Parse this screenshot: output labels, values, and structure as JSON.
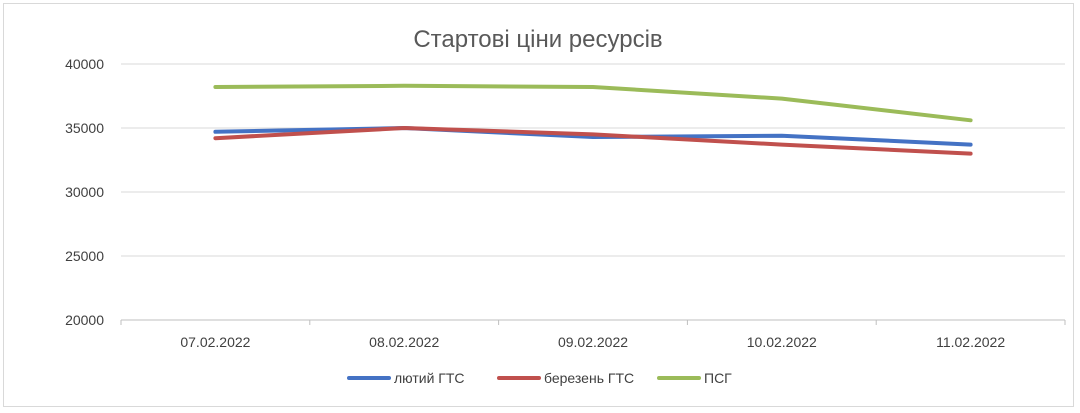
{
  "chart_data": {
    "type": "line",
    "title": "Стартові ціни ресурсів",
    "categories": [
      "07.02.2022",
      "08.02.2022",
      "09.02.2022",
      "10.02.2022",
      "11.02.2022"
    ],
    "ylim": [
      20000,
      40000
    ],
    "yticks": [
      20000,
      25000,
      30000,
      35000,
      40000
    ],
    "grid": true,
    "legend_position": "bottom",
    "series": [
      {
        "name": "лютий ГТС",
        "color": "#4472c4",
        "values": [
          34700,
          35000,
          34300,
          34400,
          33700
        ]
      },
      {
        "name": "березень ГТС",
        "color": "#c0504d",
        "values": [
          34200,
          35000,
          34500,
          33700,
          33000
        ]
      },
      {
        "name": "ПСГ",
        "color": "#9bbb59",
        "values": [
          38200,
          38300,
          38200,
          37300,
          35600
        ]
      }
    ]
  }
}
